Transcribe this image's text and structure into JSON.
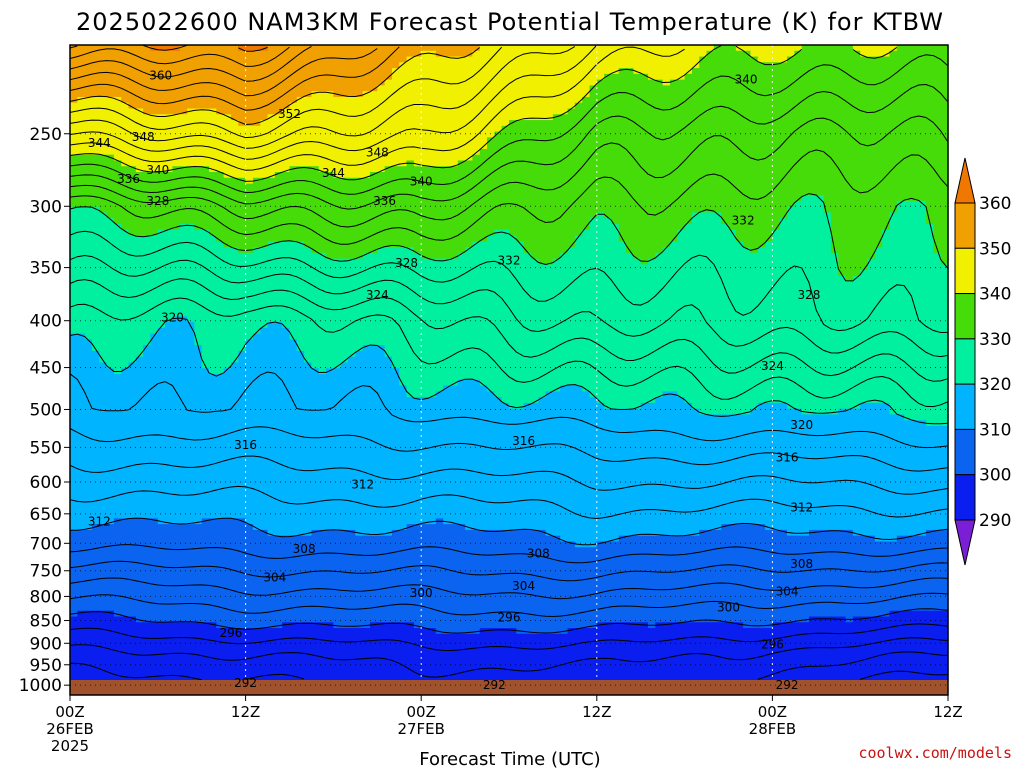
{
  "chart_data": {
    "type": "heatmap",
    "title": "2025022600 NAM3KM Forecast Potential Temperature (K) for KTBW",
    "xlabel": "Forecast Time (UTC)",
    "ylabel": "",
    "y_axis": {
      "scale": "log",
      "ticks": [
        250,
        300,
        350,
        400,
        450,
        500,
        550,
        600,
        650,
        700,
        750,
        800,
        850,
        900,
        950,
        1000
      ],
      "range": [
        200,
        1025
      ],
      "inverted": true
    },
    "x_axis": {
      "range_hours": [
        0,
        60
      ],
      "ticks": [
        {
          "hour": 0,
          "line1": "00Z",
          "line2": "26FEB",
          "line3": "2025"
        },
        {
          "hour": 12,
          "line1": "12Z",
          "line2": "",
          "line3": ""
        },
        {
          "hour": 24,
          "line1": "00Z",
          "line2": "27FEB",
          "line3": ""
        },
        {
          "hour": 36,
          "line1": "12Z",
          "line2": "",
          "line3": ""
        },
        {
          "hour": 48,
          "line1": "00Z",
          "line2": "28FEB",
          "line3": ""
        },
        {
          "hour": 60,
          "line1": "12Z",
          "line2": "",
          "line3": ""
        }
      ]
    },
    "grid": true,
    "contour_interval": 2,
    "colorbar": {
      "levels": [
        290,
        300,
        310,
        320,
        330,
        340,
        350,
        360
      ],
      "colors": [
        "#7a1fd6",
        "#0a1ef0",
        "#0a64f0",
        "#00b4ff",
        "#00f0a0",
        "#46dc0a",
        "#f0f000",
        "#f0a000",
        "#f07800"
      ]
    },
    "series": [
      {
        "hours": [
          0,
          12,
          24,
          36,
          48,
          60
        ],
        "levels": [
          1000,
          1000,
          1000,
          1000,
          1000,
          1000
        ],
        "values": [
          292.5,
          293.4,
          294.8,
          294.5,
          293.0,
          290.5
        ]
      },
      {
        "hours": [
          0,
          12,
          24,
          36,
          48,
          60
        ],
        "levels": [
          925,
          925,
          925,
          925,
          925,
          925
        ],
        "values": [
          295.5,
          296.0,
          297.0,
          297.0,
          295.5,
          294.0
        ]
      },
      {
        "hours": [
          0,
          12,
          24,
          36,
          48,
          60
        ],
        "levels": [
          850,
          850,
          850,
          850,
          850,
          850
        ],
        "values": [
          299.5,
          300.5,
          301.0,
          301.0,
          300.0,
          299.0
        ]
      },
      {
        "hours": [
          0,
          12,
          24,
          36,
          48,
          60
        ],
        "levels": [
          700,
          700,
          700,
          700,
          700,
          700
        ],
        "values": [
          308.5,
          309.0,
          309.0,
          309.5,
          309.0,
          309.0
        ]
      },
      {
        "hours": [
          0,
          12,
          24,
          36,
          48,
          60
        ],
        "levels": [
          500,
          500,
          500,
          500,
          500,
          500
        ],
        "values": [
          317.5,
          317.7,
          318.2,
          319.5,
          320.0,
          321.0
        ]
      },
      {
        "hours": [
          0,
          12,
          24,
          36,
          48,
          60
        ],
        "levels": [
          400,
          400,
          400,
          400,
          400,
          400
        ],
        "values": [
          322.0,
          320.0,
          323.5,
          326.5,
          327.0,
          328.5
        ]
      },
      {
        "hours": [
          0,
          12,
          24,
          36,
          48,
          60
        ],
        "levels": [
          300,
          300,
          300,
          300,
          300,
          300
        ],
        "values": [
          330.0,
          335.0,
          335.0,
          331.0,
          331.0,
          330.0
        ]
      },
      {
        "hours": [
          0,
          12,
          24,
          36,
          48,
          60
        ],
        "levels": [
          250,
          250,
          250,
          250,
          250,
          250
        ],
        "values": [
          344.0,
          348.0,
          344.0,
          336.0,
          334.0,
          334.0
        ]
      },
      {
        "hours": [
          0,
          12,
          24,
          36,
          48,
          60
        ],
        "levels": [
          200,
          200,
          200,
          200,
          200,
          200
        ],
        "values": [
          360.0,
          360.0,
          352.0,
          344.0,
          340.0,
          340.0
        ]
      }
    ],
    "contour_labels": [
      {
        "text": "360",
        "hour": 6.2,
        "p": 216
      },
      {
        "text": "352",
        "hour": 15.0,
        "p": 238
      },
      {
        "text": "348",
        "hour": 5.0,
        "p": 252
      },
      {
        "text": "344",
        "hour": 2.0,
        "p": 256
      },
      {
        "text": "348",
        "hour": 21.0,
        "p": 262
      },
      {
        "text": "340",
        "hour": 46.2,
        "p": 218
      },
      {
        "text": "340",
        "hour": 6.0,
        "p": 274
      },
      {
        "text": "336",
        "hour": 4.0,
        "p": 280
      },
      {
        "text": "344",
        "hour": 18.0,
        "p": 276
      },
      {
        "text": "340",
        "hour": 24.0,
        "p": 282
      },
      {
        "text": "328",
        "hour": 6.0,
        "p": 296
      },
      {
        "text": "336",
        "hour": 21.5,
        "p": 296
      },
      {
        "text": "332",
        "hour": 46.0,
        "p": 311
      },
      {
        "text": "328",
        "hour": 23.0,
        "p": 346
      },
      {
        "text": "332",
        "hour": 30.0,
        "p": 344
      },
      {
        "text": "324",
        "hour": 21.0,
        "p": 375
      },
      {
        "text": "328",
        "hour": 50.5,
        "p": 375
      },
      {
        "text": "320",
        "hour": 7.0,
        "p": 397
      },
      {
        "text": "324",
        "hour": 48.0,
        "p": 448
      },
      {
        "text": "320",
        "hour": 50.0,
        "p": 520
      },
      {
        "text": "316",
        "hour": 12.0,
        "p": 547
      },
      {
        "text": "316",
        "hour": 31.0,
        "p": 541
      },
      {
        "text": "316",
        "hour": 49.0,
        "p": 564
      },
      {
        "text": "312",
        "hour": 20.0,
        "p": 604
      },
      {
        "text": "312",
        "hour": 2.0,
        "p": 663
      },
      {
        "text": "312",
        "hour": 50.0,
        "p": 640
      },
      {
        "text": "308",
        "hour": 16.0,
        "p": 710
      },
      {
        "text": "308",
        "hour": 32.0,
        "p": 718
      },
      {
        "text": "308",
        "hour": 50.0,
        "p": 737
      },
      {
        "text": "304",
        "hour": 14.0,
        "p": 763
      },
      {
        "text": "304",
        "hour": 31.0,
        "p": 779
      },
      {
        "text": "304",
        "hour": 49.0,
        "p": 790
      },
      {
        "text": "300",
        "hour": 24.0,
        "p": 793
      },
      {
        "text": "300",
        "hour": 45.0,
        "p": 823
      },
      {
        "text": "296",
        "hour": 11.0,
        "p": 877
      },
      {
        "text": "296",
        "hour": 30.0,
        "p": 844
      },
      {
        "text": "296",
        "hour": 48.0,
        "p": 903
      },
      {
        "text": "292",
        "hour": 12.0,
        "p": 995
      },
      {
        "text": "292",
        "hour": 29.0,
        "p": 1000
      },
      {
        "text": "292",
        "hour": 49.0,
        "p": 1000
      }
    ],
    "credit": "coolwx.com/models"
  }
}
